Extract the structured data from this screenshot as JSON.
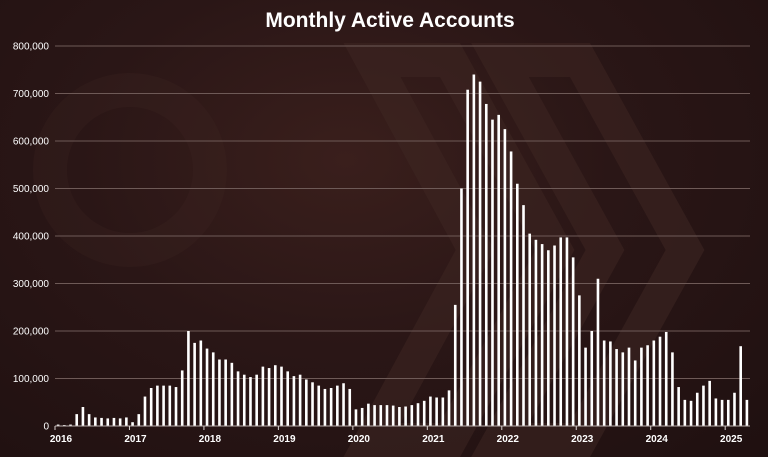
{
  "chart_data": {
    "type": "bar",
    "title": "Monthly Active Accounts",
    "xlabel": "",
    "ylabel": "",
    "ylim": [
      0,
      800000
    ],
    "yticks": [
      0,
      100000,
      200000,
      300000,
      400000,
      500000,
      600000,
      700000,
      800000
    ],
    "ytick_labels": [
      "0",
      "100,000",
      "200,000",
      "300,000",
      "400,000",
      "500,000",
      "600,000",
      "700,000",
      "800,000"
    ],
    "xtick_labels": [
      "2016",
      "2017",
      "2018",
      "2019",
      "2020",
      "2021",
      "2022",
      "2023",
      "2024",
      "2025"
    ],
    "grid": true,
    "legend": "none",
    "bar_color": "#ffffff",
    "background_color": "#2a1717",
    "series": [
      {
        "values": [
          3000,
          2000,
          3000,
          25000,
          40000,
          25000,
          18000,
          17000,
          16000,
          17000,
          16000,
          18000,
          8000,
          25000,
          62000,
          80000,
          85000,
          85000,
          85000,
          82000,
          117000,
          200000,
          175000,
          180000,
          163000,
          155000,
          140000,
          140000,
          133000,
          115000,
          108000,
          103000,
          108000,
          125000,
          122000,
          128000,
          125000,
          115000,
          105000,
          108000,
          98000,
          92000,
          85000,
          78000,
          80000,
          85000,
          90000,
          78000,
          35000,
          38000,
          47000,
          44000,
          44000,
          44000,
          43000,
          40000,
          41000,
          44000,
          48000,
          53000,
          62000,
          60000,
          60000,
          75000,
          255000,
          500000,
          708000,
          740000,
          725000,
          678000,
          645000,
          655000,
          625000,
          578000,
          510000,
          465000,
          405000,
          392000,
          383000,
          370000,
          380000,
          397000,
          397000,
          355000,
          275000,
          165000,
          200000,
          310000,
          180000,
          178000,
          162000,
          155000,
          165000,
          138000,
          165000,
          170000,
          180000,
          188000,
          198000,
          155000,
          82000,
          55000,
          53000,
          70000,
          85000,
          95000,
          58000,
          55000,
          55000,
          70000,
          168000,
          55000
        ]
      }
    ]
  }
}
